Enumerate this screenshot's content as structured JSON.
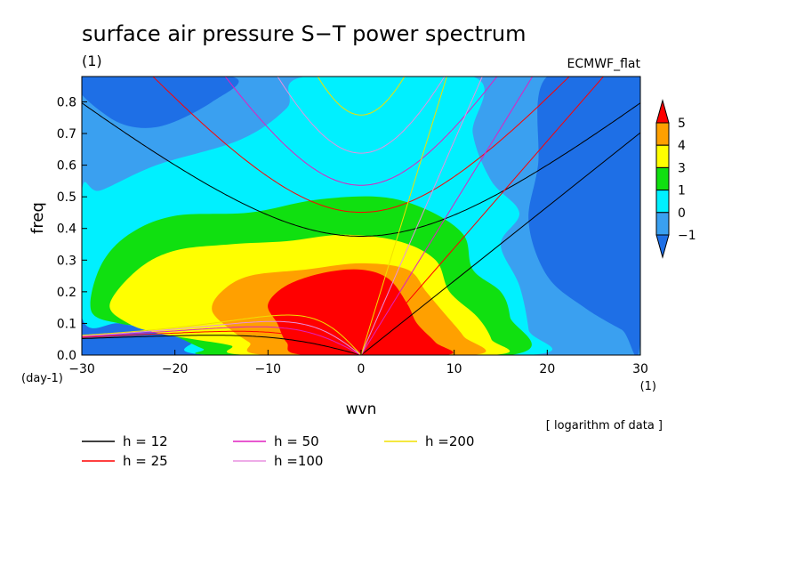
{
  "chart_data": {
    "type": "heatmap",
    "title": "surface air pressure S−T power spectrum",
    "subtitle_left": "(1)",
    "subtitle_right": "ECMWF_flat",
    "xlabel": "wvn",
    "ylabel": "freq",
    "x_unit": "(1)",
    "y_unit": "(day-1)",
    "data_note": "[ logarithm of data ]",
    "xlim": [
      -30,
      30
    ],
    "ylim": [
      0.0,
      0.88
    ],
    "x_ticks": [
      -30,
      -20,
      -10,
      0,
      10,
      20,
      30
    ],
    "x_tick_labels": [
      "−30",
      "−20",
      "−10",
      "0",
      "10",
      "20",
      "30"
    ],
    "y_ticks": [
      0.0,
      0.1,
      0.2,
      0.3,
      0.4,
      0.5,
      0.6,
      0.7,
      0.8
    ],
    "y_tick_labels": [
      "0.0",
      "0.1",
      "0.2",
      "0.3",
      "0.4",
      "0.5",
      "0.6",
      "0.7",
      "0.8"
    ],
    "colorbar": {
      "levels": [
        -1,
        0,
        1,
        3,
        4,
        5
      ],
      "labels": [
        "−1",
        "0",
        "1",
        "3",
        "4",
        "5"
      ],
      "colors": [
        "#1e6fe6",
        "#3aa0f0",
        "#00f0ff",
        "#10e010",
        "#ffff00",
        "#ffa000",
        "#ff0000"
      ]
    },
    "contour_fill_levels": [
      {
        "level": 0,
        "color": "#00f0ff"
      },
      {
        "level": 1,
        "color": "#10e010"
      },
      {
        "level": 3,
        "color": "#ffff00"
      },
      {
        "level": 4,
        "color": "#ffa000"
      },
      {
        "level": 5,
        "color": "#ff0000"
      }
    ],
    "background_color": "#3aa0f0",
    "dispersion_curves": [
      {
        "name": "h = 12",
        "h": 12,
        "color": "#000000"
      },
      {
        "name": "h = 25",
        "h": 25,
        "color": "#ff0000"
      },
      {
        "name": "h = 50",
        "h": 50,
        "color": "#e020c0"
      },
      {
        "name": "h =100",
        "h": 100,
        "color": "#e890e0"
      },
      {
        "name": "h =200",
        "h": 200,
        "color": "#f0e000"
      }
    ],
    "grid": false
  }
}
